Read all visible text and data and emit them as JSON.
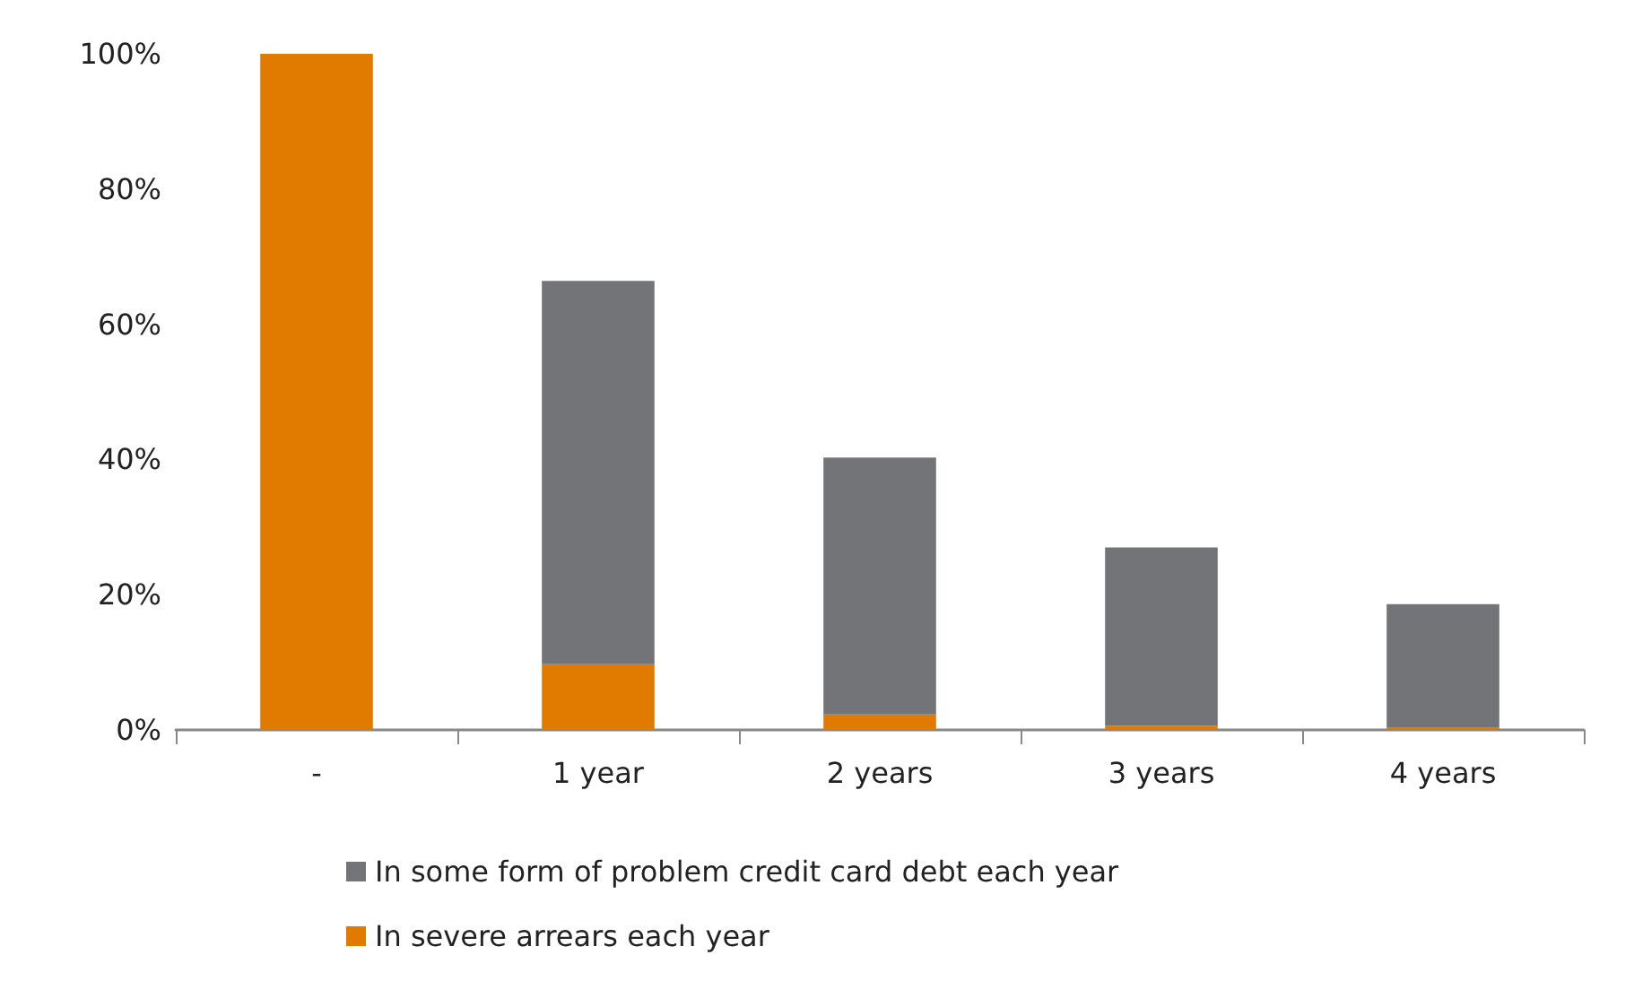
{
  "chart_data": {
    "type": "bar",
    "stacked": true,
    "categories": [
      "-",
      "1 year",
      "2 years",
      "3 years",
      "4 years"
    ],
    "series": [
      {
        "name": "In severe arrears each year",
        "color": "#e07b00",
        "values": [
          100,
          9.7,
          2.3,
          0.6,
          0.3
        ]
      },
      {
        "name": "In some form of problem credit card debt each year",
        "color": "#737478",
        "values": [
          0,
          56.7,
          38.0,
          26.4,
          18.3
        ]
      }
    ],
    "ylim": [
      0,
      100
    ],
    "yticks": [
      {
        "value": 0,
        "label": "0%"
      },
      {
        "value": 20,
        "label": "20%"
      },
      {
        "value": 40,
        "label": "40%"
      },
      {
        "value": 60,
        "label": "60%"
      },
      {
        "value": 80,
        "label": "80%"
      },
      {
        "value": 100,
        "label": "100%"
      }
    ],
    "grid": false,
    "legend": "bottom"
  }
}
